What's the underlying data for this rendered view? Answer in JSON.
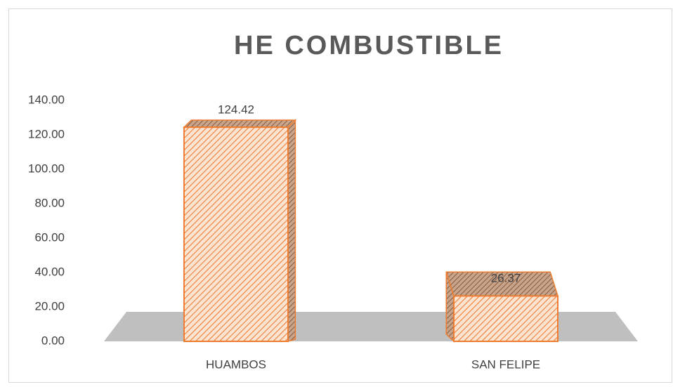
{
  "chart_data": {
    "type": "bar3d",
    "title": "HE COMBUSTIBLE",
    "categories": [
      "HUAMBOS",
      "SAN FELIPE"
    ],
    "values": [
      124.42,
      26.37
    ],
    "color": "#ed7d31",
    "ylim": [
      0,
      140
    ],
    "yticks": [
      {
        "value": 0,
        "label": "0.00"
      },
      {
        "value": 20,
        "label": "20.00"
      },
      {
        "value": 40,
        "label": "40.00"
      },
      {
        "value": 60,
        "label": "60.00"
      },
      {
        "value": 80,
        "label": "80.00"
      },
      {
        "value": 100,
        "label": "100.00"
      },
      {
        "value": 120,
        "label": "120.00"
      },
      {
        "value": 140,
        "label": "140.00"
      }
    ],
    "grid": false
  }
}
